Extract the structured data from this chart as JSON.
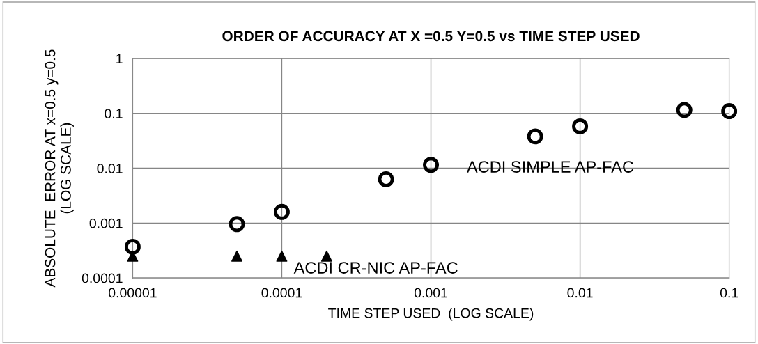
{
  "chart_data": {
    "type": "scatter",
    "title": "ORDER OF ACCURACY AT X =0.5 Y=0.5 vs TIME STEP USED",
    "xlabel": "TIME STEP USED  (LOG SCALE)",
    "ylabel": "ABSOLUTE  ERROR AT x=0.5 y=0.5\n(LOG SCALE)",
    "log": "xy",
    "grid": true,
    "xlim": [
      1e-05,
      0.1
    ],
    "xticks": [
      {
        "value": 1e-05,
        "label": "0.00001"
      },
      {
        "value": 0.0001,
        "label": "0.0001"
      },
      {
        "value": 0.001,
        "label": "0.001"
      },
      {
        "value": 0.01,
        "label": "0.01"
      },
      {
        "value": 0.1,
        "label": "0.1"
      }
    ],
    "ylim": [
      0.0001,
      1
    ],
    "yticks": [
      {
        "value": 0.0001,
        "label": "0.0001"
      },
      {
        "value": 0.001,
        "label": "0.001"
      },
      {
        "value": 0.01,
        "label": "0.01"
      },
      {
        "value": 0.1,
        "label": "0.1"
      },
      {
        "value": 1,
        "label": "1"
      }
    ],
    "series": [
      {
        "color": "#000000",
        "marker": "circle",
        "x": [
          1e-05,
          5e-05,
          0.0001,
          0.0005,
          0.001,
          0.005,
          0.01,
          0.05,
          0.1
        ],
        "values": [
          0.00037,
          0.00096,
          0.0016,
          0.0063,
          0.0115,
          0.038,
          0.058,
          0.115,
          0.11
        ]
      },
      {
        "color": "#000000",
        "marker": "triangle",
        "x": [
          1e-05,
          5e-05,
          0.0001,
          0.0002
        ],
        "values": [
          0.00025,
          0.00025,
          0.00025,
          0.00025
        ]
      }
    ],
    "annotations": [
      "ACDI SIMPLE AP-FAC",
      "ACDI CR-NIC AP-FAC"
    ]
  }
}
